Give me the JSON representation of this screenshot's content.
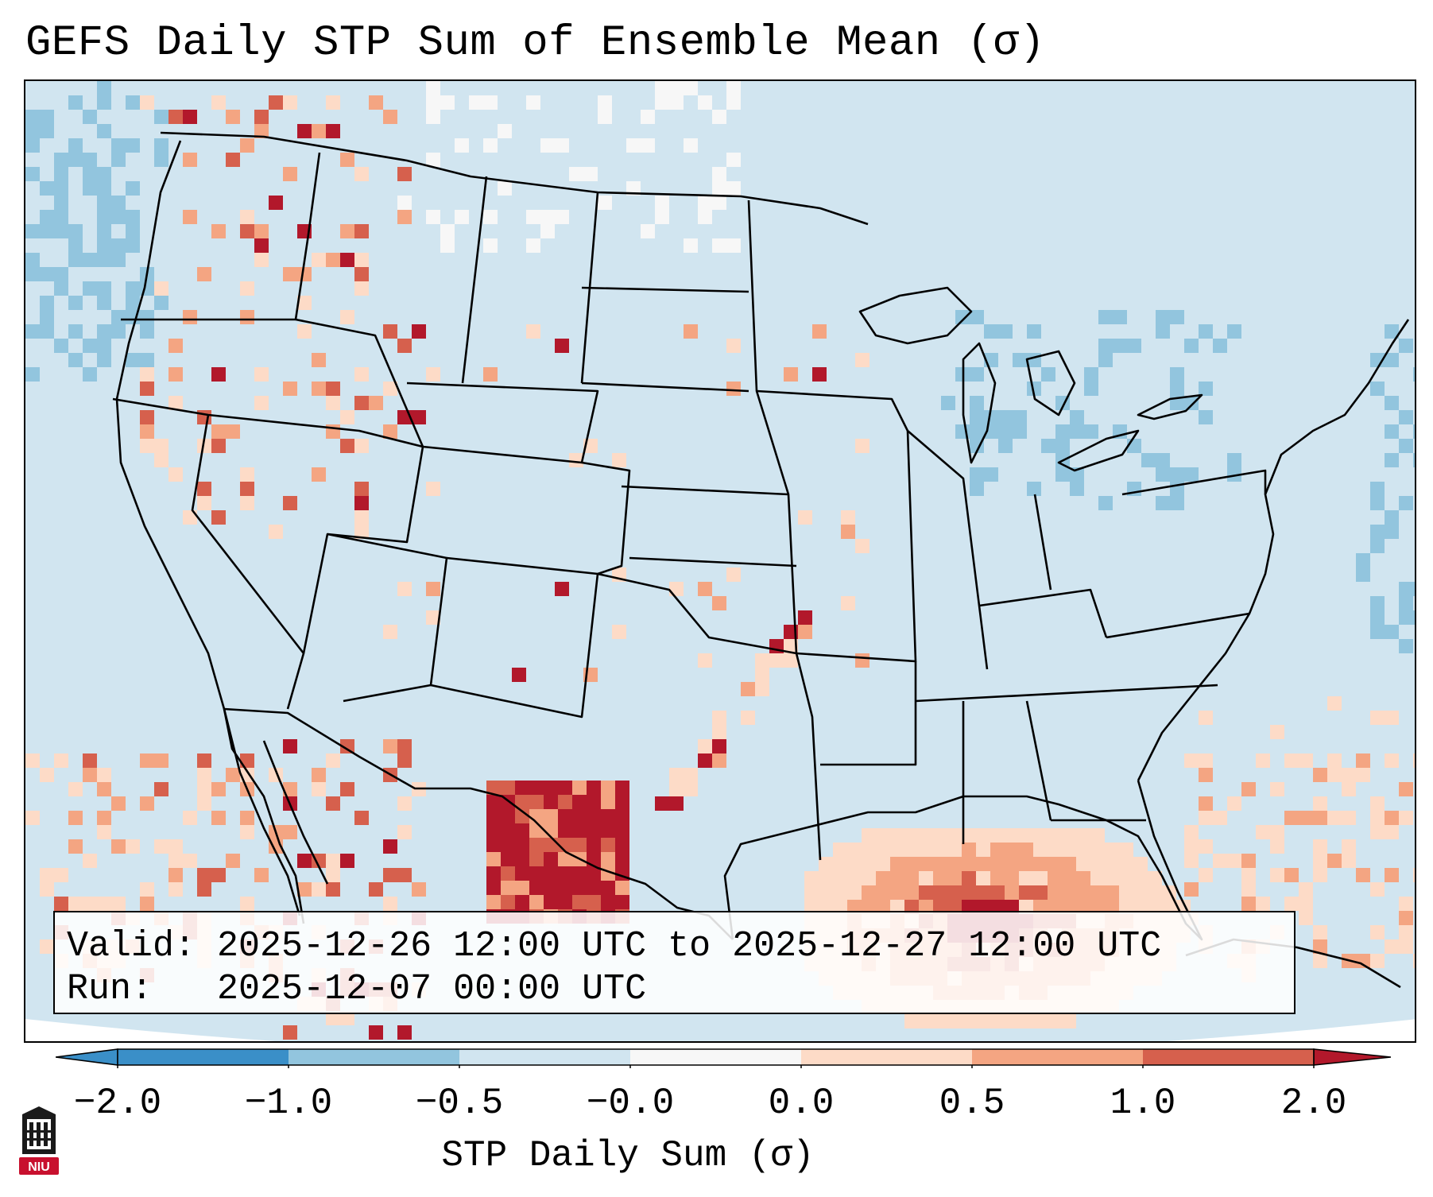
{
  "title": "GEFS Daily STP Sum of Ensemble Mean (σ)",
  "info": {
    "valid_label": "Valid:",
    "valid_value": "2025-12-26 12:00 UTC to 2025-12-27 12:00 UTC",
    "run_label": "Run:",
    "run_value": "2025-12-07 00:00 UTC"
  },
  "colorbar": {
    "label": "STP Daily Sum (σ)",
    "ticks": [
      "−2.0",
      "−1.0",
      "−0.5",
      "−0.0",
      "0.0",
      "0.5",
      "1.0",
      "2.0"
    ],
    "colors": [
      "#3a8fc8",
      "#92c5de",
      "#d1e5f0",
      "#f7f7f7",
      "#fddbc7",
      "#f4a582",
      "#d6604d",
      "#b2182b"
    ]
  },
  "logo": {
    "text": "NIU",
    "color": "#c8102e"
  },
  "legend_colors": {
    "strong_negative": "#92c5de",
    "weak_negative": "#d1e5f0",
    "neutral": "#f7f7f7",
    "weak_positive": "#fddbc7",
    "moderate_positive": "#f4a582",
    "strong_positive": "#d6604d",
    "very_strong_positive": "#b2182b"
  }
}
